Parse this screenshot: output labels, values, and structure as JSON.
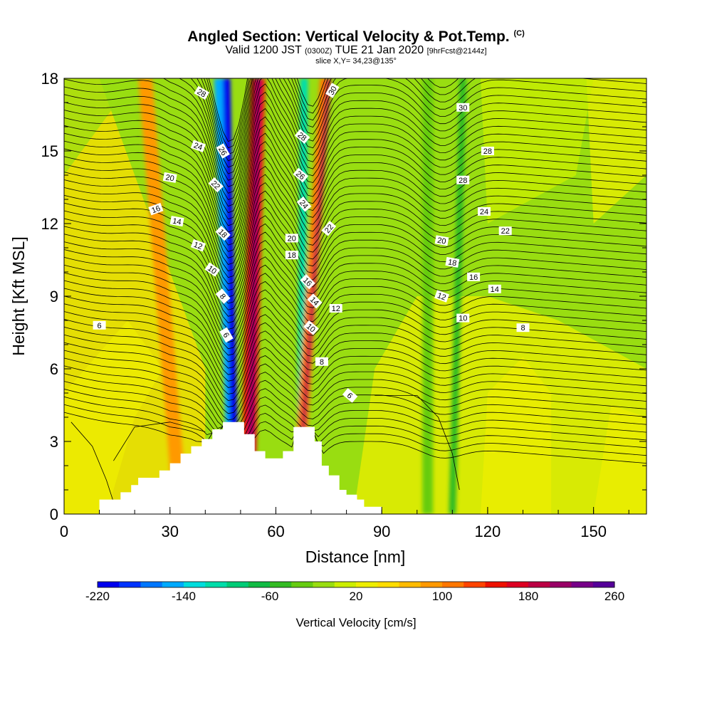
{
  "title": {
    "main": "Angled Section: Vertical Velocity & Pot.Temp.",
    "main_suffix": "(C)",
    "sub_prefix": "Valid 1200 JST",
    "sub_utc": "(0300Z)",
    "sub_date": "TUE 21 Jan 2020",
    "sub_fcst": "[9hrFcst@2144z]",
    "slice": "slice X,Y= 34,23@135°"
  },
  "chart_data": {
    "type": "heatmap",
    "xlabel": "Distance [nm]",
    "ylabel": "Height [Kft MSL]",
    "xlim": [
      0,
      165
    ],
    "ylim": [
      0,
      18
    ],
    "x_ticks": [
      0,
      30,
      60,
      90,
      120,
      150
    ],
    "y_ticks": [
      0,
      3,
      6,
      9,
      12,
      15,
      18
    ],
    "colorbar": {
      "title": "Vertical Velocity [cm/s]",
      "range": [
        -220,
        260
      ],
      "tick_labels": [
        -220,
        -140,
        -60,
        20,
        100,
        180,
        260
      ],
      "colors": [
        "#0000ee",
        "#0033ff",
        "#0077ff",
        "#00aaff",
        "#00dddd",
        "#00ddaa",
        "#00cc77",
        "#11bb44",
        "#33bb22",
        "#66cc11",
        "#99dd11",
        "#ccee00",
        "#eeee00",
        "#ffdd00",
        "#ffbb00",
        "#ff9900",
        "#ff7700",
        "#ff4400",
        "#ee1100",
        "#dd0022",
        "#bb0044",
        "#990066",
        "#770088",
        "#550099"
      ]
    },
    "velocity_bands": [
      {
        "x_top": 23,
        "x_bottom": 33,
        "width": 4,
        "value": 90
      },
      {
        "x_top": 44,
        "x_bottom": 48,
        "width": 3,
        "value": -150
      },
      {
        "x_top": 46,
        "x_bottom": 48.5,
        "width": 2.2,
        "value": -210
      },
      {
        "x_top": 55,
        "x_bottom": 52,
        "width": 4,
        "value": 150
      },
      {
        "x_top": 55,
        "x_bottom": 52.5,
        "width": 1.6,
        "value": 200
      },
      {
        "x_top": 68,
        "x_bottom": 67,
        "width": 2.2,
        "value": -110
      },
      {
        "x_top": 74,
        "x_bottom": 66,
        "width": 3,
        "value": 110
      },
      {
        "x_top": 75,
        "x_bottom": 66,
        "width": 1.2,
        "value": 180
      },
      {
        "x_top": 103,
        "x_bottom": 103,
        "width": 3,
        "value": -30
      },
      {
        "x_top": 113,
        "x_bottom": 110,
        "width": 2,
        "value": -50
      }
    ],
    "terrain": [
      {
        "x": 10,
        "h": 0.6
      },
      {
        "x": 16,
        "h": 0.9
      },
      {
        "x": 19,
        "h": 1.2
      },
      {
        "x": 21,
        "h": 1.5
      },
      {
        "x": 27,
        "h": 1.8
      },
      {
        "x": 30,
        "h": 2.1
      },
      {
        "x": 33,
        "h": 2.5
      },
      {
        "x": 36,
        "h": 2.8
      },
      {
        "x": 39,
        "h": 3.1
      },
      {
        "x": 42,
        "h": 3.5
      },
      {
        "x": 45,
        "h": 3.8
      },
      {
        "x": 51,
        "h": 3.3
      },
      {
        "x": 54,
        "h": 2.6
      },
      {
        "x": 57,
        "h": 2.3
      },
      {
        "x": 60,
        "h": 2.3
      },
      {
        "x": 62,
        "h": 2.6
      },
      {
        "x": 65,
        "h": 3.6
      },
      {
        "x": 71,
        "h": 3.0
      },
      {
        "x": 73,
        "h": 2.0
      },
      {
        "x": 75,
        "h": 1.6
      },
      {
        "x": 78,
        "h": 1.0
      },
      {
        "x": 80,
        "h": 0.8
      },
      {
        "x": 83,
        "h": 0.6
      },
      {
        "x": 85,
        "h": 0.3
      }
    ],
    "contour_labels": [
      {
        "text": "28",
        "x": 39,
        "y": 17.4,
        "rot": 30
      },
      {
        "text": "30",
        "x": 76,
        "y": 17.5,
        "rot": -60
      },
      {
        "text": "30",
        "x": 113,
        "y": 16.8,
        "rot": 0
      },
      {
        "text": "28",
        "x": 120,
        "y": 15.0,
        "rot": 0
      },
      {
        "text": "28",
        "x": 67.5,
        "y": 15.6,
        "rot": 40
      },
      {
        "text": "28",
        "x": 113,
        "y": 13.8,
        "rot": 0
      },
      {
        "text": "26",
        "x": 67,
        "y": 14.0,
        "rot": 40
      },
      {
        "text": "24",
        "x": 38,
        "y": 15.2,
        "rot": 20
      },
      {
        "text": "26",
        "x": 45,
        "y": 15.0,
        "rot": 60
      },
      {
        "text": "24",
        "x": 68,
        "y": 12.8,
        "rot": 50
      },
      {
        "text": "24",
        "x": 119,
        "y": 12.5,
        "rot": 0
      },
      {
        "text": "22",
        "x": 43,
        "y": 13.6,
        "rot": 45
      },
      {
        "text": "22",
        "x": 75,
        "y": 11.8,
        "rot": -50
      },
      {
        "text": "22",
        "x": 125,
        "y": 11.7,
        "rot": 0
      },
      {
        "text": "20",
        "x": 30,
        "y": 13.9,
        "rot": 10
      },
      {
        "text": "20",
        "x": 64.5,
        "y": 11.4,
        "rot": 0
      },
      {
        "text": "20",
        "x": 107,
        "y": 11.3,
        "rot": 10
      },
      {
        "text": "16",
        "x": 26,
        "y": 12.6,
        "rot": -20
      },
      {
        "text": "14",
        "x": 32,
        "y": 12.1,
        "rot": 10
      },
      {
        "text": "18",
        "x": 45,
        "y": 11.6,
        "rot": 45
      },
      {
        "text": "18",
        "x": 64.5,
        "y": 10.7,
        "rot": 0
      },
      {
        "text": "18",
        "x": 110,
        "y": 10.4,
        "rot": 10
      },
      {
        "text": "12",
        "x": 38,
        "y": 11.1,
        "rot": 20
      },
      {
        "text": "16",
        "x": 69,
        "y": 9.6,
        "rot": 45
      },
      {
        "text": "16",
        "x": 116,
        "y": 9.8,
        "rot": 0
      },
      {
        "text": "10",
        "x": 42,
        "y": 10.1,
        "rot": 35
      },
      {
        "text": "14",
        "x": 122,
        "y": 9.3,
        "rot": 0
      },
      {
        "text": "8",
        "x": 45,
        "y": 9.0,
        "rot": 50
      },
      {
        "text": "14",
        "x": 71,
        "y": 8.8,
        "rot": 45
      },
      {
        "text": "12",
        "x": 77,
        "y": 8.5,
        "rot": 0
      },
      {
        "text": "12",
        "x": 107,
        "y": 9.0,
        "rot": 20
      },
      {
        "text": "10",
        "x": 70,
        "y": 7.7,
        "rot": 40
      },
      {
        "text": "10",
        "x": 113,
        "y": 8.1,
        "rot": 0
      },
      {
        "text": "6",
        "x": 10,
        "y": 7.8,
        "rot": 0
      },
      {
        "text": "8",
        "x": 130,
        "y": 7.7,
        "rot": 0
      },
      {
        "text": "6",
        "x": 46,
        "y": 7.4,
        "rot": 60
      },
      {
        "text": "8",
        "x": 73,
        "y": 6.3,
        "rot": 0
      },
      {
        "text": "6",
        "x": 81,
        "y": 4.9,
        "rot": 40
      }
    ]
  }
}
